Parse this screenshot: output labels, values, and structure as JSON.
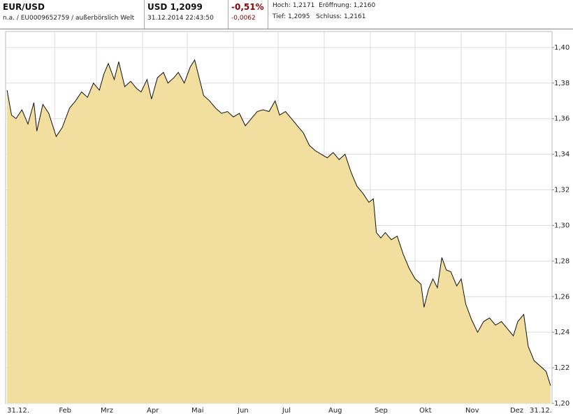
{
  "header": {
    "symbol": "EUR/USD",
    "subline": "n.a. / EU0009652759 / außerbörslich Welt",
    "price": "USD 1,2099",
    "timestamp": "31.12.2014 22:43:50",
    "change_pct": "-0,51%",
    "change_abs": "-0,0062",
    "high_label": "Hoch:",
    "high": "1,2171",
    "open_label": "Eröffnung:",
    "open": "1,2160",
    "low_label": "Tief:",
    "low": "1,2095",
    "close_label": "Schluss:",
    "close": "1,2161"
  },
  "chart_data": {
    "type": "area",
    "color": "#f2df9f",
    "line_color": "#111111",
    "grid": true,
    "x": [
      0,
      3,
      6,
      10,
      14,
      18,
      20,
      24,
      28,
      33,
      37,
      42,
      46,
      50,
      54,
      58,
      62,
      65,
      68,
      72,
      75,
      79,
      83,
      87,
      90,
      94,
      97,
      101,
      105,
      108,
      112,
      115,
      119,
      123,
      126,
      129,
      132,
      136,
      140,
      144,
      148,
      152,
      156,
      160,
      164,
      168,
      172,
      176,
      180,
      183,
      187,
      191,
      195,
      199,
      203,
      207,
      211,
      215,
      219,
      223,
      227,
      231,
      235,
      239,
      243,
      246,
      248,
      251,
      254,
      258,
      262,
      266,
      270,
      274,
      278,
      280,
      283,
      286,
      289,
      292,
      295,
      298,
      302,
      305,
      308,
      312,
      316,
      320,
      324,
      328,
      332,
      336,
      340,
      343,
      347,
      350,
      354,
      358,
      362,
      365
    ],
    "values": [
      1.376,
      1.362,
      1.36,
      1.365,
      1.357,
      1.369,
      1.353,
      1.368,
      1.363,
      1.35,
      1.355,
      1.366,
      1.37,
      1.375,
      1.372,
      1.38,
      1.376,
      1.385,
      1.391,
      1.382,
      1.392,
      1.378,
      1.381,
      1.377,
      1.375,
      1.382,
      1.371,
      1.383,
      1.386,
      1.38,
      1.383,
      1.386,
      1.38,
      1.389,
      1.393,
      1.383,
      1.373,
      1.37,
      1.366,
      1.363,
      1.364,
      1.361,
      1.363,
      1.356,
      1.36,
      1.364,
      1.365,
      1.364,
      1.37,
      1.362,
      1.364,
      1.36,
      1.356,
      1.352,
      1.345,
      1.342,
      1.34,
      1.338,
      1.341,
      1.337,
      1.34,
      1.33,
      1.322,
      1.318,
      1.313,
      1.315,
      1.296,
      1.293,
      1.296,
      1.292,
      1.294,
      1.284,
      1.276,
      1.27,
      1.267,
      1.254,
      1.264,
      1.27,
      1.265,
      1.282,
      1.275,
      1.274,
      1.266,
      1.27,
      1.256,
      1.247,
      1.24,
      1.246,
      1.248,
      1.244,
      1.246,
      1.242,
      1.238,
      1.246,
      1.25,
      1.232,
      1.224,
      1.221,
      1.218,
      1.21
    ],
    "xlim": [
      -1,
      366
    ],
    "xticks": [
      {
        "value": 0,
        "label": "31.12."
      },
      {
        "value": 32,
        "label": "Feb"
      },
      {
        "value": 60,
        "label": "Mrz"
      },
      {
        "value": 91,
        "label": "Apr"
      },
      {
        "value": 121,
        "label": "Mai"
      },
      {
        "value": 152,
        "label": "Jun"
      },
      {
        "value": 182,
        "label": "Jul"
      },
      {
        "value": 213,
        "label": "Aug"
      },
      {
        "value": 244,
        "label": "Sep"
      },
      {
        "value": 274,
        "label": "Okt"
      },
      {
        "value": 305,
        "label": "Nov"
      },
      {
        "value": 335,
        "label": "Dez"
      },
      {
        "value": 365,
        "label": "31.12."
      }
    ],
    "ylim": [
      1.2,
      1.409
    ],
    "yticks": [
      {
        "value": 1.2,
        "label": "1,20"
      },
      {
        "value": 1.22,
        "label": "1,22"
      },
      {
        "value": 1.24,
        "label": "1,24"
      },
      {
        "value": 1.26,
        "label": "1,26"
      },
      {
        "value": 1.28,
        "label": "1,28"
      },
      {
        "value": 1.3,
        "label": "1,30"
      },
      {
        "value": 1.32,
        "label": "1,32"
      },
      {
        "value": 1.34,
        "label": "1,34"
      },
      {
        "value": 1.36,
        "label": "1,36"
      },
      {
        "value": 1.38,
        "label": "1,38"
      },
      {
        "value": 1.4,
        "label": "1,40"
      }
    ]
  }
}
